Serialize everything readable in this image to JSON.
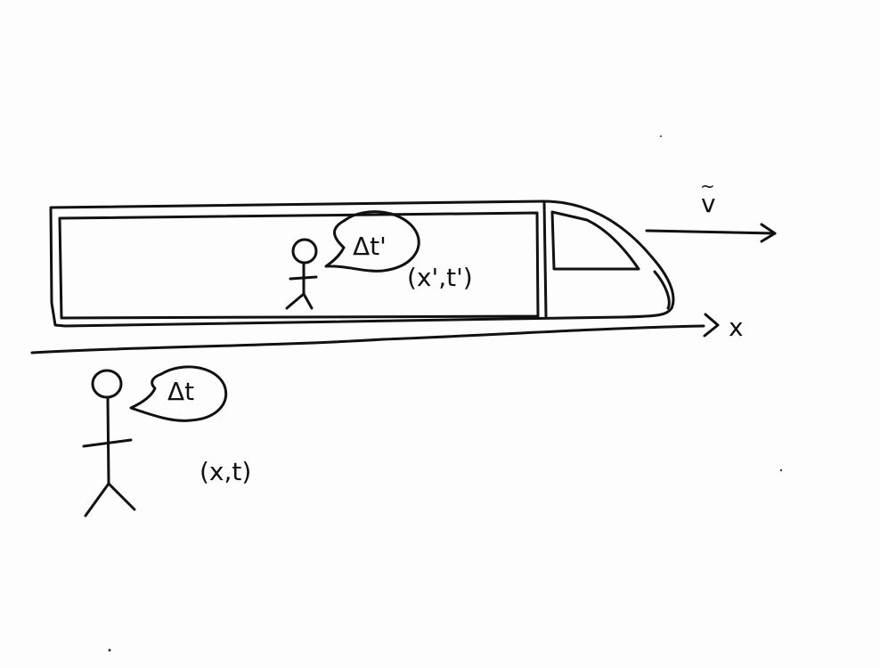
{
  "train": {
    "observer_bubble": "Δt'",
    "coordinates": "(x',t')"
  },
  "ground": {
    "observer_bubble": "Δt",
    "coordinates": "(x,t)"
  },
  "axis": {
    "x_label": "x"
  },
  "velocity": {
    "label": "v",
    "vector_mark": "~"
  },
  "colors": {
    "ink": "#111111",
    "paper": "#fdfdfd"
  }
}
